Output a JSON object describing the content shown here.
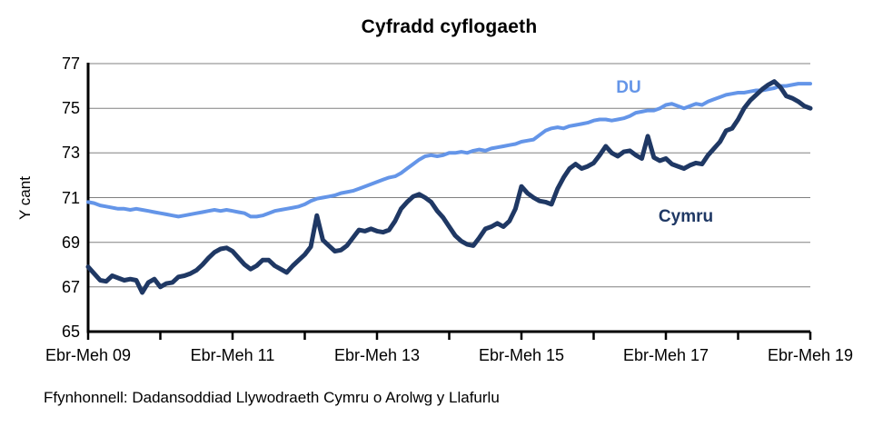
{
  "title": "Cyfradd cyflogaeth",
  "source": "Ffynhonnell: Dadansoddiad Llywodraeth Cymru o Arolwg y Llafurlu",
  "y_axis": {
    "label": "Y cant",
    "ticks": [
      77,
      75,
      73,
      71,
      69,
      67,
      65
    ]
  },
  "x_axis": {
    "tick_labels": [
      "Ebr-Meh 09",
      "Ebr-Meh 11",
      "Ebr-Meh 13",
      "Ebr-Meh 15",
      "Ebr-Meh 17",
      "Ebr-Meh 19"
    ],
    "tick_marks": 11
  },
  "colors": {
    "du_line": "#6495E8",
    "cymru_line": "#1F3864",
    "gridline": "#808080",
    "axis": "#000000"
  },
  "chart_data": {
    "type": "line",
    "title": "Cyfradd cyflogaeth",
    "ylabel": "Y cant",
    "ylim": [
      65,
      77
    ],
    "y_ticks": [
      65,
      67,
      69,
      71,
      73,
      75,
      77
    ],
    "grid": "horizontal",
    "legend": "inline-labels",
    "x_range": "Ebr-Meh 09 to Ebr-Meh 19, monthly rolling quarters",
    "x_tick_labels": [
      "Ebr-Meh 09",
      "Ebr-Meh 11",
      "Ebr-Meh 13",
      "Ebr-Meh 15",
      "Ebr-Meh 17",
      "Ebr-Meh 19"
    ],
    "series": [
      {
        "name": "DU",
        "color": "#6495E8",
        "values": [
          70.8,
          70.75,
          70.65,
          70.6,
          70.55,
          70.5,
          70.5,
          70.45,
          70.5,
          70.45,
          70.4,
          70.35,
          70.3,
          70.25,
          70.2,
          70.15,
          70.2,
          70.25,
          70.3,
          70.35,
          70.4,
          70.45,
          70.4,
          70.45,
          70.4,
          70.35,
          70.3,
          70.15,
          70.15,
          70.2,
          70.3,
          70.4,
          70.45,
          70.5,
          70.55,
          70.6,
          70.7,
          70.85,
          70.95,
          71.0,
          71.05,
          71.1,
          71.2,
          71.25,
          71.3,
          71.4,
          71.5,
          71.6,
          71.7,
          71.8,
          71.9,
          71.95,
          72.1,
          72.3,
          72.5,
          72.7,
          72.85,
          72.9,
          72.85,
          72.9,
          73.0,
          73.0,
          73.05,
          73.0,
          73.1,
          73.15,
          73.1,
          73.2,
          73.25,
          73.3,
          73.35,
          73.4,
          73.5,
          73.55,
          73.6,
          73.8,
          74.0,
          74.1,
          74.15,
          74.1,
          74.2,
          74.25,
          74.3,
          74.35,
          74.45,
          74.5,
          74.5,
          74.45,
          74.5,
          74.55,
          74.65,
          74.8,
          74.85,
          74.9,
          74.9,
          75.0,
          75.15,
          75.2,
          75.1,
          75.0,
          75.1,
          75.2,
          75.15,
          75.3,
          75.4,
          75.5,
          75.6,
          75.65,
          75.7,
          75.7,
          75.75,
          75.8,
          75.8,
          75.85,
          75.9,
          76.0,
          76.0,
          76.05,
          76.1,
          76.1,
          76.1
        ]
      },
      {
        "name": "Cymru",
        "color": "#1F3864",
        "values": [
          67.9,
          67.6,
          67.3,
          67.25,
          67.5,
          67.4,
          67.3,
          67.35,
          67.3,
          66.75,
          67.2,
          67.35,
          67.0,
          67.15,
          67.2,
          67.45,
          67.5,
          67.6,
          67.75,
          68.0,
          68.3,
          68.55,
          68.7,
          68.75,
          68.6,
          68.3,
          68.0,
          67.8,
          67.95,
          68.2,
          68.2,
          67.95,
          67.8,
          67.65,
          67.95,
          68.2,
          68.45,
          68.8,
          70.2,
          69.1,
          68.85,
          68.6,
          68.65,
          68.85,
          69.2,
          69.55,
          69.5,
          69.6,
          69.5,
          69.45,
          69.55,
          69.95,
          70.5,
          70.8,
          71.05,
          71.15,
          71.0,
          70.8,
          70.4,
          70.1,
          69.7,
          69.3,
          69.05,
          68.9,
          68.85,
          69.2,
          69.6,
          69.7,
          69.85,
          69.7,
          69.95,
          70.5,
          71.5,
          71.2,
          71.0,
          70.85,
          70.8,
          70.7,
          71.4,
          71.9,
          72.3,
          72.5,
          72.3,
          72.4,
          72.55,
          72.9,
          73.3,
          73.0,
          72.85,
          73.05,
          73.1,
          72.9,
          72.75,
          73.75,
          72.8,
          72.65,
          72.75,
          72.5,
          72.4,
          72.3,
          72.45,
          72.55,
          72.5,
          72.9,
          73.2,
          73.5,
          74.0,
          74.1,
          74.5,
          75.0,
          75.35,
          75.6,
          75.85,
          76.05,
          76.2,
          75.95,
          75.55,
          75.45,
          75.3,
          75.1,
          75.0
        ]
      }
    ]
  }
}
